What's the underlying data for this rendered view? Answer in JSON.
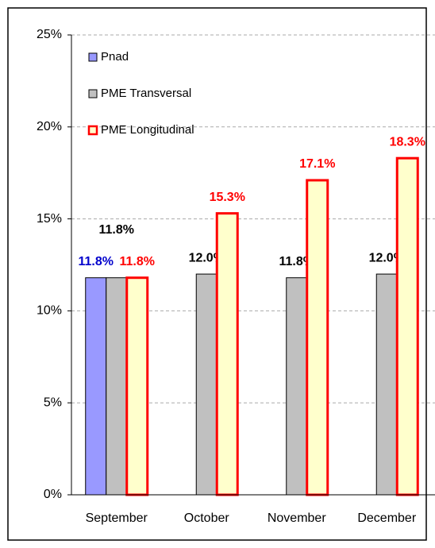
{
  "chart_data": {
    "type": "bar",
    "categories": [
      "September",
      "October",
      "November",
      "December"
    ],
    "series": [
      {
        "name": "Pnad",
        "color": "#9999ff",
        "border": "#000000",
        "label_color": "#0000cc",
        "values": [
          11.8,
          null,
          null,
          null
        ],
        "value_labels": [
          "11.8%",
          null,
          null,
          null
        ]
      },
      {
        "name": "PME Transversal",
        "color": "#c0c0c0",
        "border": "#000000",
        "label_color": "#000000",
        "values": [
          11.8,
          12.0,
          11.8,
          12.0
        ],
        "value_labels": [
          "11.8%",
          "12.0%",
          "11.8%",
          "12.0%"
        ]
      },
      {
        "name": "PME Longitudinal",
        "color": "#ffffcc",
        "border": "#ff0000",
        "label_color": "#ff0000",
        "values": [
          11.8,
          15.3,
          17.1,
          18.3
        ],
        "value_labels": [
          "11.8%",
          "15.3%",
          "17.1%",
          "18.3%"
        ]
      }
    ],
    "ylim": [
      0,
      25
    ],
    "yticks": [
      {
        "value": 0,
        "label": "0%"
      },
      {
        "value": 5,
        "label": "5%"
      },
      {
        "value": 10,
        "label": "10%"
      },
      {
        "value": 15,
        "label": "15%"
      },
      {
        "value": 20,
        "label": "20%"
      },
      {
        "value": 25,
        "label": "25%"
      }
    ],
    "grid": true,
    "legend": "top-left"
  }
}
